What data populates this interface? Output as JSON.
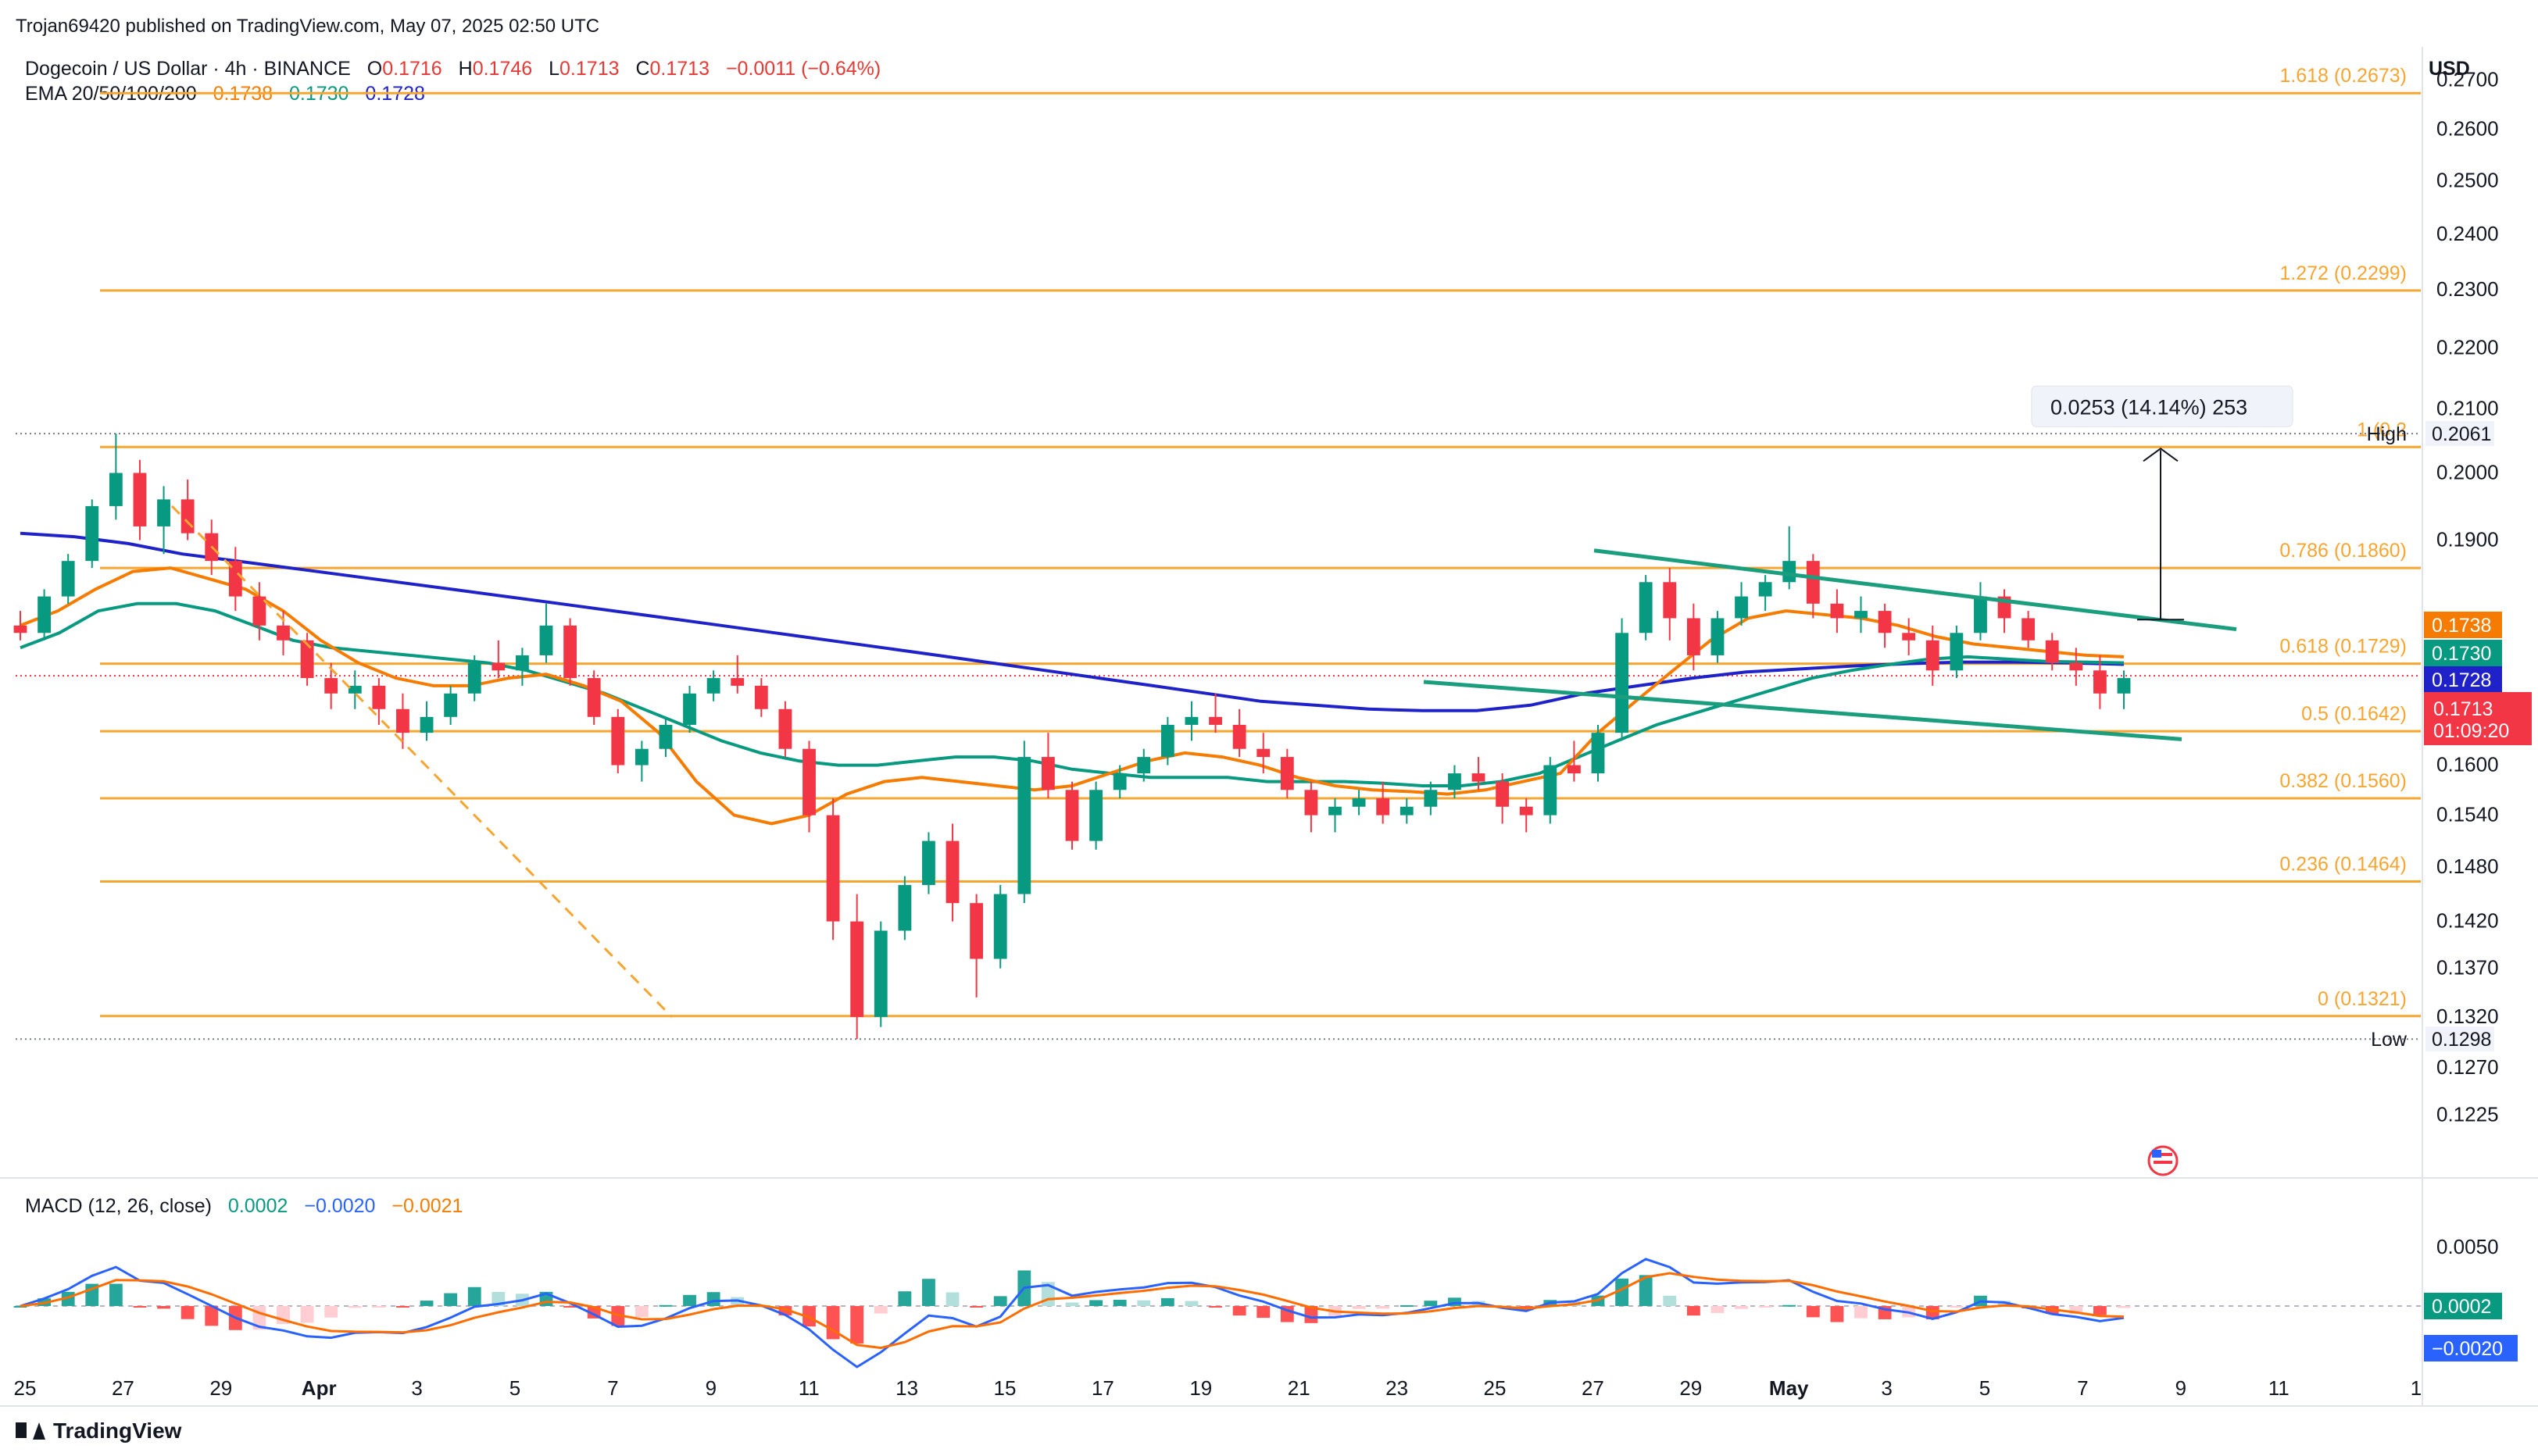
{
  "header": {
    "publisher_line": "Trojan69420 published on TradingView.com, May 07, 2025 02:50 UTC"
  },
  "legend": {
    "symbol": "Dogecoin / US Dollar · 4h · BINANCE",
    "o_label": "O",
    "o_value": "0.1716",
    "h_label": "H",
    "h_value": "0.1746",
    "l_label": "L",
    "l_value": "0.1713",
    "c_label": "C",
    "c_value": "0.1713",
    "change": "−0.0011 (−0.64%)",
    "ema_title": "EMA 20/50/100/200",
    "ema20_value": "0.1738",
    "ema50_value": "0.1730",
    "ema200_value": "0.1728",
    "macd_title": "MACD (12, 26, close)",
    "macd_hist": "0.0002",
    "macd_line": "−0.0020",
    "macd_signal": "−0.0021"
  },
  "currency": "USD",
  "footer": {
    "brand": "TradingView"
  },
  "colors": {
    "up": "#089981",
    "down": "#f23645",
    "ema20": "#f57c00",
    "ema50": "#089981",
    "ema200": "#1e22c8",
    "fib": "#f7a531",
    "trend": "#1a9e7e",
    "macd": "#2962ff",
    "signal": "#ff6d00",
    "hist_up_strong": "#26a69a",
    "hist_up_weak": "#b2dfdb",
    "hist_down_strong": "#ff5252",
    "hist_down_weak": "#ffcdd2"
  },
  "chart_data": {
    "type": "candlestick",
    "ylim": [
      0.118,
      0.272
    ],
    "yscale": "log",
    "price_ticks": [
      "0.2700",
      "0.2600",
      "0.2500",
      "0.2400",
      "0.2300",
      "0.2200",
      "0.2100",
      "0.2000",
      "0.1900",
      "0.1600",
      "0.1540",
      "0.1480",
      "0.1420",
      "0.1370",
      "0.1320",
      "0.1270",
      "0.1225"
    ],
    "x_ticks": [
      "25",
      "27",
      "29",
      "Apr",
      "3",
      "5",
      "7",
      "9",
      "11",
      "13",
      "15",
      "17",
      "19",
      "21",
      "23",
      "25",
      "27",
      "29",
      "May",
      "3",
      "5",
      "7",
      "9",
      "11",
      "1"
    ],
    "bold_x_ticks": [
      "Apr",
      "May"
    ],
    "fib_levels": [
      {
        "label": "1.618 (0.2673)",
        "price": 0.2673
      },
      {
        "label": "1.272 (0.2299)",
        "price": 0.2299
      },
      {
        "label": "1 (0.2",
        "price": 0.204
      },
      {
        "label": "0.786 (0.1860)",
        "price": 0.186
      },
      {
        "label": "0.618 (0.1729)",
        "price": 0.1729
      },
      {
        "label": "0.5 (0.1642)",
        "price": 0.1642
      },
      {
        "label": "0.382 (0.1560)",
        "price": 0.156
      },
      {
        "label": "0.236 (0.1464)",
        "price": 0.1464
      },
      {
        "label": "0 (0.1321)",
        "price": 0.1321
      }
    ],
    "high": {
      "label": "High",
      "value": "0.2061",
      "price": 0.2061
    },
    "low": {
      "label": "Low",
      "value": "0.1298",
      "price": 0.1298
    },
    "last_price": {
      "value": "0.1713",
      "countdown": "01:09:20",
      "price": 0.1713
    },
    "ema_tags": [
      {
        "value": "0.1738",
        "price": 0.1738,
        "series": "ema20"
      },
      {
        "value": "0.1730",
        "price": 0.173,
        "series": "ema50"
      },
      {
        "value": "0.1728",
        "price": 0.1728,
        "series": "ema200"
      }
    ],
    "measure": {
      "label": "0.0253 (14.14%) 253",
      "from": 0.1788,
      "to": 0.204
    },
    "candles": [
      [
        0.178,
        0.18,
        0.176,
        0.177
      ],
      [
        0.177,
        0.183,
        0.176,
        0.182
      ],
      [
        0.182,
        0.188,
        0.181,
        0.187
      ],
      [
        0.187,
        0.196,
        0.186,
        0.195
      ],
      [
        0.195,
        0.2061,
        0.193,
        0.2
      ],
      [
        0.2,
        0.202,
        0.19,
        0.192
      ],
      [
        0.192,
        0.198,
        0.188,
        0.196
      ],
      [
        0.196,
        0.199,
        0.19,
        0.191
      ],
      [
        0.191,
        0.193,
        0.185,
        0.187
      ],
      [
        0.187,
        0.189,
        0.18,
        0.182
      ],
      [
        0.182,
        0.184,
        0.176,
        0.178
      ],
      [
        0.178,
        0.18,
        0.174,
        0.176
      ],
      [
        0.176,
        0.177,
        0.17,
        0.171
      ],
      [
        0.171,
        0.173,
        0.167,
        0.169
      ],
      [
        0.169,
        0.172,
        0.167,
        0.17
      ],
      [
        0.17,
        0.171,
        0.165,
        0.167
      ],
      [
        0.167,
        0.169,
        0.162,
        0.164
      ],
      [
        0.164,
        0.168,
        0.163,
        0.166
      ],
      [
        0.166,
        0.17,
        0.165,
        0.169
      ],
      [
        0.169,
        0.174,
        0.168,
        0.173
      ],
      [
        0.173,
        0.176,
        0.171,
        0.172
      ],
      [
        0.172,
        0.175,
        0.17,
        0.174
      ],
      [
        0.174,
        0.181,
        0.173,
        0.178
      ],
      [
        0.178,
        0.179,
        0.17,
        0.171
      ],
      [
        0.171,
        0.172,
        0.165,
        0.166
      ],
      [
        0.166,
        0.167,
        0.159,
        0.16
      ],
      [
        0.16,
        0.163,
        0.158,
        0.162
      ],
      [
        0.162,
        0.166,
        0.161,
        0.165
      ],
      [
        0.165,
        0.17,
        0.164,
        0.169
      ],
      [
        0.169,
        0.172,
        0.168,
        0.171
      ],
      [
        0.171,
        0.174,
        0.169,
        0.17
      ],
      [
        0.17,
        0.171,
        0.166,
        0.167
      ],
      [
        0.167,
        0.168,
        0.161,
        0.162
      ],
      [
        0.162,
        0.163,
        0.152,
        0.154
      ],
      [
        0.154,
        0.156,
        0.14,
        0.142
      ],
      [
        0.142,
        0.145,
        0.1298,
        0.132
      ],
      [
        0.132,
        0.142,
        0.131,
        0.141
      ],
      [
        0.141,
        0.147,
        0.14,
        0.146
      ],
      [
        0.146,
        0.152,
        0.145,
        0.151
      ],
      [
        0.151,
        0.153,
        0.142,
        0.144
      ],
      [
        0.144,
        0.145,
        0.134,
        0.138
      ],
      [
        0.138,
        0.146,
        0.137,
        0.145
      ],
      [
        0.145,
        0.163,
        0.144,
        0.161
      ],
      [
        0.161,
        0.164,
        0.156,
        0.157
      ],
      [
        0.157,
        0.158,
        0.15,
        0.151
      ],
      [
        0.151,
        0.158,
        0.15,
        0.157
      ],
      [
        0.157,
        0.16,
        0.156,
        0.159
      ],
      [
        0.159,
        0.162,
        0.158,
        0.161
      ],
      [
        0.161,
        0.166,
        0.16,
        0.165
      ],
      [
        0.165,
        0.168,
        0.163,
        0.166
      ],
      [
        0.166,
        0.169,
        0.164,
        0.165
      ],
      [
        0.165,
        0.167,
        0.161,
        0.162
      ],
      [
        0.162,
        0.164,
        0.159,
        0.161
      ],
      [
        0.161,
        0.162,
        0.156,
        0.157
      ],
      [
        0.157,
        0.158,
        0.152,
        0.154
      ],
      [
        0.154,
        0.156,
        0.152,
        0.155
      ],
      [
        0.155,
        0.157,
        0.154,
        0.156
      ],
      [
        0.156,
        0.158,
        0.153,
        0.154
      ],
      [
        0.154,
        0.156,
        0.153,
        0.155
      ],
      [
        0.155,
        0.158,
        0.154,
        0.157
      ],
      [
        0.157,
        0.16,
        0.156,
        0.159
      ],
      [
        0.159,
        0.161,
        0.157,
        0.158
      ],
      [
        0.158,
        0.159,
        0.153,
        0.155
      ],
      [
        0.155,
        0.156,
        0.152,
        0.154
      ],
      [
        0.154,
        0.161,
        0.153,
        0.16
      ],
      [
        0.16,
        0.163,
        0.158,
        0.159
      ],
      [
        0.159,
        0.165,
        0.158,
        0.164
      ],
      [
        0.164,
        0.179,
        0.163,
        0.177
      ],
      [
        0.177,
        0.185,
        0.176,
        0.184
      ],
      [
        0.184,
        0.186,
        0.176,
        0.179
      ],
      [
        0.179,
        0.181,
        0.172,
        0.174
      ],
      [
        0.174,
        0.18,
        0.173,
        0.179
      ],
      [
        0.179,
        0.184,
        0.178,
        0.182
      ],
      [
        0.182,
        0.185,
        0.18,
        0.184
      ],
      [
        0.184,
        0.192,
        0.183,
        0.187
      ],
      [
        0.187,
        0.188,
        0.179,
        0.181
      ],
      [
        0.181,
        0.183,
        0.177,
        0.179
      ],
      [
        0.179,
        0.182,
        0.177,
        0.18
      ],
      [
        0.18,
        0.181,
        0.175,
        0.177
      ],
      [
        0.177,
        0.179,
        0.174,
        0.176
      ],
      [
        0.176,
        0.178,
        0.17,
        0.172
      ],
      [
        0.172,
        0.178,
        0.171,
        0.177
      ],
      [
        0.177,
        0.184,
        0.176,
        0.182
      ],
      [
        0.182,
        0.183,
        0.177,
        0.179
      ],
      [
        0.179,
        0.18,
        0.175,
        0.176
      ],
      [
        0.176,
        0.177,
        0.172,
        0.173
      ],
      [
        0.173,
        0.175,
        0.17,
        0.172
      ],
      [
        0.172,
        0.174,
        0.167,
        0.169
      ],
      [
        0.169,
        0.172,
        0.167,
        0.171
      ]
    ],
    "ema20": [
      0.178,
      0.18,
      0.183,
      0.1855,
      0.186,
      0.1845,
      0.183,
      0.18,
      0.176,
      0.173,
      0.171,
      0.17,
      0.17,
      0.171,
      0.1715,
      0.17,
      0.168,
      0.164,
      0.158,
      0.154,
      0.153,
      0.154,
      0.1565,
      0.158,
      0.1585,
      0.158,
      0.1575,
      0.157,
      0.1575,
      0.159,
      0.1605,
      0.1615,
      0.161,
      0.16,
      0.1585,
      0.1575,
      0.157,
      0.1568,
      0.1565,
      0.157,
      0.158,
      0.159,
      0.164,
      0.168,
      0.172,
      0.176,
      0.179,
      0.18,
      0.1795,
      0.179,
      0.178,
      0.1765,
      0.1755,
      0.175,
      0.1745,
      0.174,
      0.1738
    ],
    "ema50": [
      0.175,
      0.177,
      0.18,
      0.181,
      0.181,
      0.18,
      0.178,
      0.176,
      0.175,
      0.1745,
      0.174,
      0.1735,
      0.173,
      0.172,
      0.1705,
      0.169,
      0.167,
      0.165,
      0.163,
      0.1615,
      0.1605,
      0.16,
      0.16,
      0.1605,
      0.161,
      0.161,
      0.1605,
      0.1595,
      0.159,
      0.1585,
      0.1585,
      0.1585,
      0.158,
      0.158,
      0.158,
      0.1578,
      0.1575,
      0.1575,
      0.158,
      0.159,
      0.161,
      0.163,
      0.165,
      0.1665,
      0.168,
      0.1695,
      0.171,
      0.172,
      0.1728,
      0.1735,
      0.1738,
      0.1735,
      0.1732,
      0.1731,
      0.173
    ],
    "ema200": [
      0.191,
      0.1905,
      0.1895,
      0.188,
      0.187,
      0.186,
      0.185,
      0.184,
      0.183,
      0.182,
      0.181,
      0.18,
      0.179,
      0.178,
      0.177,
      0.176,
      0.175,
      0.174,
      0.173,
      0.172,
      0.171,
      0.17,
      0.169,
      0.168,
      0.1675,
      0.167,
      0.1668,
      0.1668,
      0.1675,
      0.169,
      0.17,
      0.171,
      0.1718,
      0.1722,
      0.1726,
      0.1729,
      0.1731,
      0.1731,
      0.173,
      0.1728
    ],
    "macd_ticks": [
      "0.0050"
    ],
    "macd_tags": [
      {
        "value": "0.0002",
        "series": "hist"
      },
      {
        "value": "−0.0020",
        "series": "macd"
      }
    ]
  }
}
